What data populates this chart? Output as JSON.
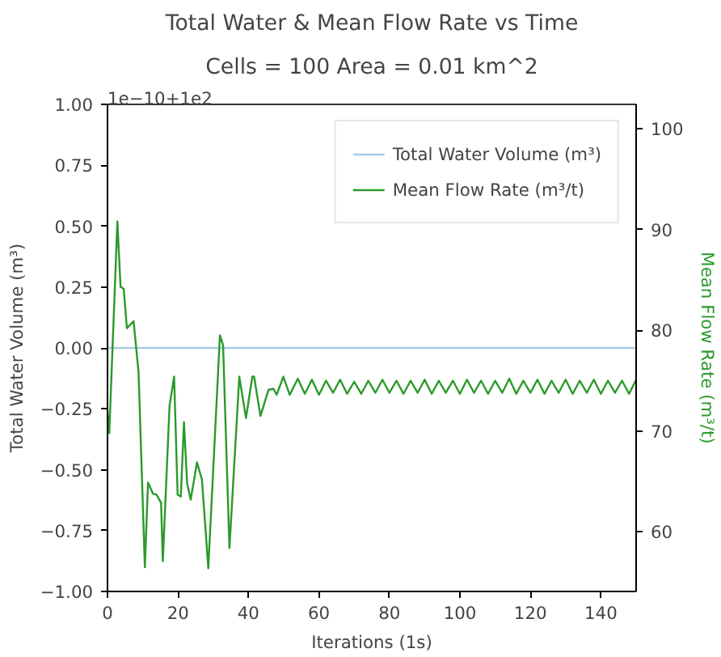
{
  "chart_data": {
    "type": "line",
    "title": "Total Water & Mean Flow Rate vs Time",
    "subtitle": "Cells = 100 Area = 0.01 km^2",
    "xlabel": "Iterations (1s)",
    "ylabel": "Total Water Volume (m³)",
    "y2label": "Mean Flow Rate (m³/t)",
    "annotations": [
      "1e−10+1e2"
    ],
    "xlim": [
      0,
      150
    ],
    "xticks": [
      0,
      20,
      40,
      60,
      80,
      100,
      120,
      140
    ],
    "ylim": [
      -1.0,
      1.0
    ],
    "yticks": [
      {
        "value": -1.0,
        "label": "−1.00"
      },
      {
        "value": -0.75,
        "label": "−0.75"
      },
      {
        "value": -0.5,
        "label": "−0.50"
      },
      {
        "value": -0.25,
        "label": "−0.25"
      },
      {
        "value": 0,
        "label": "0.00"
      },
      {
        "value": 0.25,
        "label": "0.25"
      },
      {
        "value": 0.5,
        "label": "0.50"
      },
      {
        "value": 0.75,
        "label": "0.75"
      },
      {
        "value": 1.0,
        "label": "1.00"
      }
    ],
    "y2lim": [
      54.1,
      102.4
    ],
    "y2ticks": [
      60,
      70,
      80,
      90,
      100
    ],
    "grid": false,
    "legend": "top right",
    "line_style": "solid",
    "marker": "none",
    "series": [
      {
        "name": "Total Water Volume (m³)",
        "color": "#a6cbe3",
        "x": [
          0,
          150
        ],
        "values": [
          0,
          0
        ]
      },
      {
        "name": "Mean Flow Rate (m³/t)",
        "color": "#2a9a2a",
        "axis": "y2",
        "x": [
          0,
          0.5,
          2.8,
          3.7,
          4.6,
          5.5,
          7.4,
          8.8,
          10.6,
          11.5,
          12.9,
          13.9,
          15.2,
          15.7,
          17.6,
          18.9,
          19.9,
          20.8,
          21.7,
          22.6,
          23.6,
          25.4,
          26.8,
          28.6,
          31.9,
          32.8,
          34.6,
          37.4,
          39.3,
          41.1,
          41.6,
          43.4,
          45.7,
          47.1,
          48,
          49.9,
          51.7,
          54,
          56,
          58,
          60,
          62,
          64,
          66,
          68,
          70,
          72,
          74,
          76,
          78,
          80,
          82,
          84,
          86,
          88,
          90,
          92,
          94,
          96,
          98,
          100,
          102,
          104,
          106,
          108,
          110,
          112,
          114,
          116,
          118,
          120,
          122,
          124,
          126,
          128,
          130,
          132,
          134,
          136,
          138,
          140,
          142,
          144,
          146,
          148,
          150
        ],
        "values": [
          72,
          69.8,
          90.8,
          84.3,
          84.1,
          80.2,
          80.9,
          75.9,
          56.5,
          64.9,
          63.8,
          63.7,
          62.9,
          57.1,
          72.5,
          75.4,
          63.7,
          63.5,
          70.9,
          64.8,
          63.2,
          66.9,
          65.2,
          56.4,
          79.5,
          78.5,
          58.4,
          75.4,
          71.3,
          75.4,
          75.4,
          71.5,
          74.1,
          74.2,
          73.6,
          75.4,
          73.6,
          75.2,
          73.7,
          75.1,
          73.6,
          75.0,
          73.8,
          75.1,
          73.7,
          74.9,
          73.7,
          75.0,
          73.8,
          75.1,
          73.8,
          75.0,
          73.7,
          75.0,
          73.8,
          75.1,
          73.7,
          75.0,
          73.8,
          75.0,
          73.7,
          75.1,
          73.8,
          75.0,
          73.7,
          75.0,
          73.8,
          75.2,
          73.7,
          75.0,
          73.8,
          75.1,
          73.7,
          75.0,
          73.8,
          75.1,
          73.7,
          75.0,
          73.8,
          75.1,
          73.7,
          75.0,
          73.8,
          75.0,
          73.7,
          75.1
        ]
      }
    ]
  }
}
